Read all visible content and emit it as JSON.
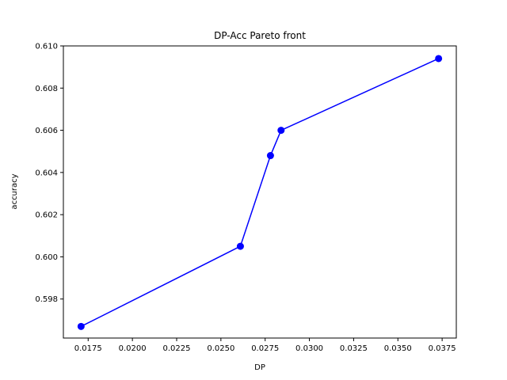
{
  "chart_data": {
    "type": "line",
    "title": "DP-Acc Pareto front",
    "xlabel": "DP",
    "ylabel": "accuracy",
    "xlim": [
      0.0161,
      0.0383
    ],
    "ylim": [
      0.59615,
      0.61
    ],
    "xticks": [
      0.0175,
      0.02,
      0.0225,
      0.025,
      0.0275,
      0.03,
      0.0325,
      0.035,
      0.0375
    ],
    "xtick_labels": [
      "0.0175",
      "0.0200",
      "0.0225",
      "0.0250",
      "0.0275",
      "0.0300",
      "0.0325",
      "0.0350",
      "0.0375"
    ],
    "yticks": [
      0.598,
      0.6,
      0.602,
      0.604,
      0.606,
      0.608,
      0.61
    ],
    "ytick_labels": [
      "0.598",
      "0.600",
      "0.602",
      "0.604",
      "0.606",
      "0.608",
      "0.610"
    ],
    "grid": false,
    "series": [
      {
        "color": "#0000ff",
        "marker": "circle",
        "x": [
          0.0171,
          0.0261,
          0.0278,
          0.0284,
          0.0373
        ],
        "y": [
          0.5967,
          0.6005,
          0.6048,
          0.606,
          0.6094
        ]
      }
    ]
  }
}
